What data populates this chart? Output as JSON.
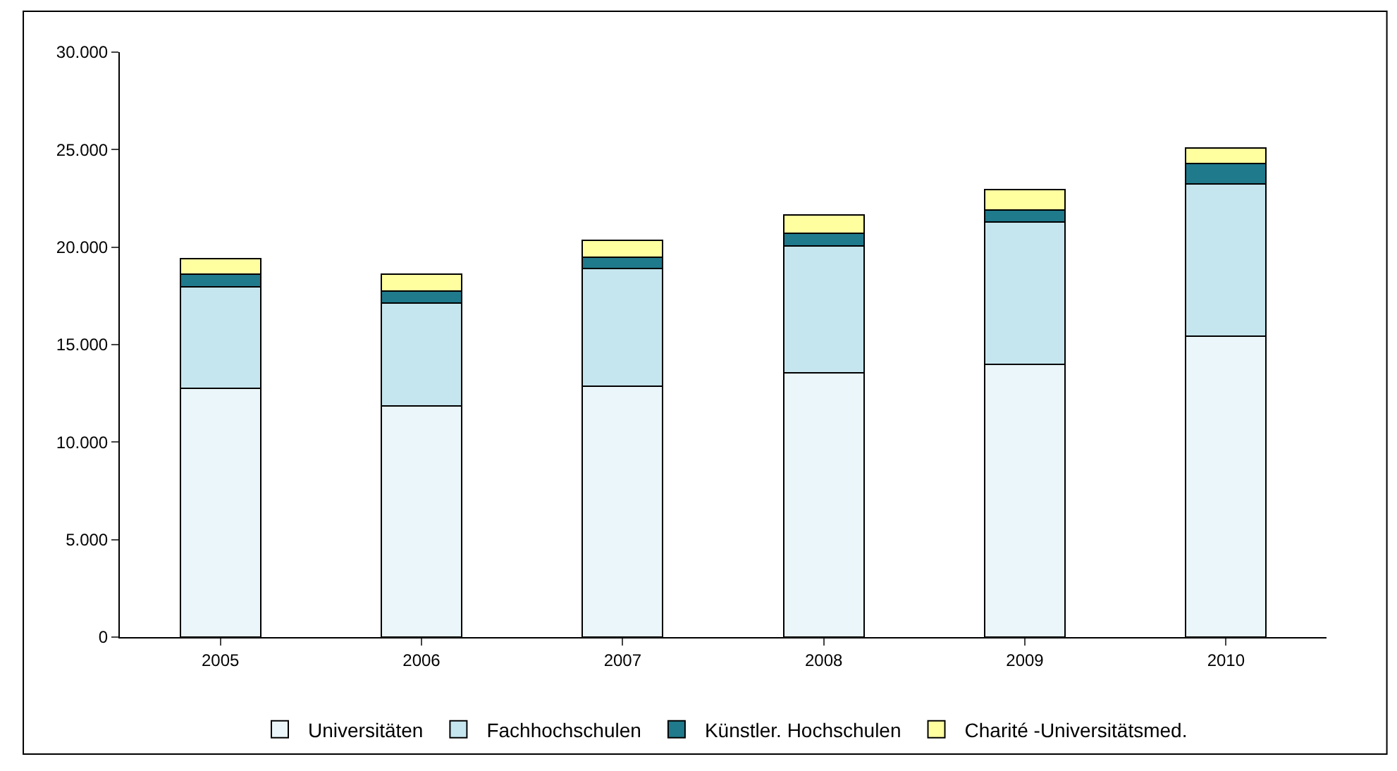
{
  "chart_data": {
    "type": "bar",
    "stacked": true,
    "categories": [
      "2005",
      "2006",
      "2007",
      "2008",
      "2009",
      "2010"
    ],
    "series": [
      {
        "name": "Universitäten",
        "color": "#eaf6f9",
        "values": [
          12750,
          11850,
          12850,
          13550,
          14000,
          15450
        ]
      },
      {
        "name": "Fachhochschulen",
        "color": "#c5e6ee",
        "values": [
          5200,
          5300,
          6050,
          6500,
          7300,
          7800
        ]
      },
      {
        "name": "Künstler. Hochschulen",
        "color": "#1f7a8c",
        "values": [
          650,
          600,
          600,
          650,
          600,
          1050
        ]
      },
      {
        "name": "Charité -Universitätsmed.",
        "color": "#ffffa0",
        "values": [
          800,
          850,
          850,
          950,
          1050,
          800
        ]
      }
    ],
    "ylim": [
      0,
      30000
    ],
    "yticks": [
      {
        "value": 0,
        "label": "0"
      },
      {
        "value": 5000,
        "label": "5.000"
      },
      {
        "value": 10000,
        "label": "10.000"
      },
      {
        "value": 15000,
        "label": "15.000"
      },
      {
        "value": 20000,
        "label": "20.000"
      },
      {
        "value": 25000,
        "label": "25.000"
      },
      {
        "value": 30000,
        "label": "30.000"
      }
    ],
    "grid": false,
    "legend": "bottom"
  }
}
